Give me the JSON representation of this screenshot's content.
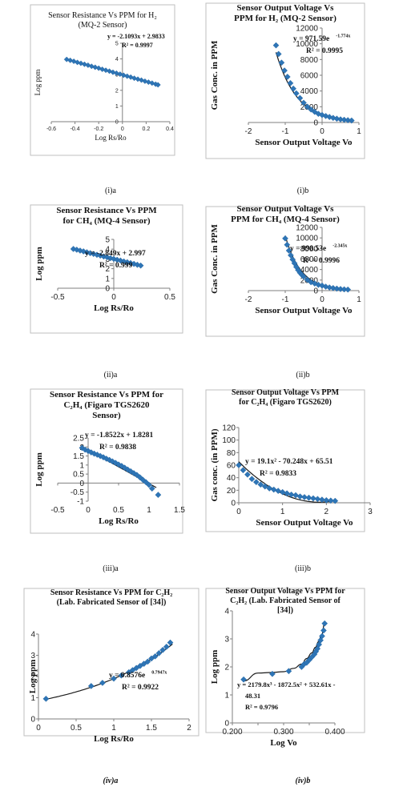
{
  "captions": [
    "(i)a",
    "(i)b",
    "(ii)a",
    "(ii)b",
    "(iii)a",
    "(iii)b",
    "(iv)a",
    "(iv)b"
  ],
  "chart_data": [
    {
      "id": "ia",
      "type": "scatter",
      "title": [
        "Sensor Resistance Vs PPM for H₂",
        "(MQ-2 Sensor)"
      ],
      "xlabel": "Log Rs/Ro",
      "ylabel": "Log ppm",
      "xlim": [
        -0.6,
        0.4
      ],
      "ylim": [
        0,
        5
      ],
      "xticks": [
        -0.6,
        -0.4,
        -0.2,
        0,
        0.2,
        0.4
      ],
      "yticks": [
        0,
        1,
        2,
        3,
        4,
        5
      ],
      "grid": false,
      "marker_color": "#2e75b6",
      "x": [
        -0.47,
        -0.44,
        -0.41,
        -0.38,
        -0.35,
        -0.32,
        -0.29,
        -0.26,
        -0.23,
        -0.2,
        -0.17,
        -0.14,
        -0.11,
        -0.08,
        -0.05,
        -0.02,
        0.01,
        0.04,
        0.07,
        0.1,
        0.13,
        0.16,
        0.19,
        0.22,
        0.25,
        0.28,
        0.3
      ],
      "y": [
        3.97,
        3.91,
        3.85,
        3.78,
        3.72,
        3.66,
        3.6,
        3.53,
        3.47,
        3.41,
        3.34,
        3.28,
        3.22,
        3.15,
        3.09,
        3.03,
        2.96,
        2.9,
        2.84,
        2.77,
        2.71,
        2.65,
        2.58,
        2.52,
        2.46,
        2.39,
        2.35
      ],
      "trendline": {
        "kind": "linear",
        "a": -2.1093,
        "b": 2.9833
      },
      "annotations": [
        "y = -2.1093x + 2.9833",
        "R² = 0.9997"
      ]
    },
    {
      "id": "ib",
      "type": "scatter",
      "title": [
        "Sensor Output Voltage Vs",
        "PPM  for H₂ (MQ-2 Sensor)"
      ],
      "xlabel": "Sensor Output Voltage Vo",
      "ylabel": "Gas Conc. in PPM",
      "xlim": [
        -2,
        1
      ],
      "ylim": [
        0,
        12000
      ],
      "xticks": [
        -2,
        -1,
        0,
        1
      ],
      "yticks": [
        0,
        2000,
        4000,
        6000,
        8000,
        10000,
        12000
      ],
      "grid": false,
      "marker_color": "#2e75b6",
      "x": [
        -1.25,
        -1.18,
        -1.1,
        -1.02,
        -0.94,
        -0.86,
        -0.78,
        -0.7,
        -0.6,
        -0.5,
        -0.4,
        -0.3,
        -0.2,
        -0.1,
        0.0,
        0.1,
        0.2,
        0.3,
        0.4,
        0.5,
        0.6,
        0.7,
        0.8
      ],
      "y": [
        9800,
        8700,
        7600,
        6600,
        5800,
        5000,
        4300,
        3700,
        3100,
        2500,
        2000,
        1650,
        1350,
        1100,
        950,
        820,
        700,
        580,
        480,
        400,
        340,
        290,
        250
      ],
      "trendline": {
        "kind": "exp",
        "a": 971.59,
        "b": -1.774
      },
      "annotations": [
        "y = 971.59e",
        "-1.774x",
        "R² = 0.9995"
      ]
    },
    {
      "id": "iia",
      "type": "scatter",
      "title": [
        "Sensor Resistance Vs PPM",
        "for CH₄ (MQ-4 Sensor)"
      ],
      "xlabel": "Log Rs/Ro",
      "ylabel": "Log ppm",
      "xlim": [
        -0.5,
        0.5
      ],
      "ylim": [
        0,
        5
      ],
      "xticks": [
        -0.5,
        0,
        0.5
      ],
      "yticks": [
        0,
        1,
        2,
        3,
        4,
        5
      ],
      "grid": false,
      "marker_color": "#2e75b6",
      "x": [
        -0.36,
        -0.33,
        -0.3,
        -0.27,
        -0.24,
        -0.21,
        -0.18,
        -0.15,
        -0.12,
        -0.09,
        -0.06,
        -0.03,
        0.0,
        0.03,
        0.06,
        0.09,
        0.12,
        0.15,
        0.18,
        0.21,
        0.24
      ],
      "y": [
        4.02,
        3.94,
        3.85,
        3.77,
        3.68,
        3.59,
        3.51,
        3.42,
        3.34,
        3.25,
        3.17,
        3.08,
        3.0,
        2.91,
        2.83,
        2.74,
        2.66,
        2.57,
        2.49,
        2.4,
        2.32
      ],
      "trendline": {
        "kind": "linear",
        "a": -2.849,
        "b": 2.997
      },
      "annotations": [
        "y = -2.849x + 2.997",
        "R² = 0.999"
      ]
    },
    {
      "id": "iib",
      "type": "scatter",
      "title": [
        "Sensor Output Voltage Vs",
        "PPM  for CH₄ (MQ-4 Sensor)"
      ],
      "xlabel": "Sensor Output Voltage Vo",
      "ylabel": "Gas Conc. in PPM",
      "xlim": [
        -2,
        1
      ],
      "ylim": [
        0,
        12000
      ],
      "xticks": [
        -2,
        -1,
        0,
        1
      ],
      "yticks": [
        0,
        2000,
        4000,
        6000,
        8000,
        10000,
        12000
      ],
      "grid": false,
      "marker_color": "#2e75b6",
      "x": [
        -1.0,
        -0.95,
        -0.9,
        -0.85,
        -0.8,
        -0.75,
        -0.7,
        -0.65,
        -0.6,
        -0.55,
        -0.5,
        -0.4,
        -0.3,
        -0.2,
        -0.1,
        0.0,
        0.1,
        0.2,
        0.3,
        0.4,
        0.5,
        0.6,
        0.7
      ],
      "y": [
        9900,
        8700,
        7600,
        6700,
        5900,
        5200,
        4500,
        3900,
        3400,
        3000,
        2650,
        2050,
        1600,
        1350,
        1100,
        950,
        750,
        600,
        480,
        380,
        300,
        240,
        200
      ],
      "trendline": {
        "kind": "exp",
        "a": 998.53,
        "b": -2.345
      },
      "annotations": [
        "y = 998.53e",
        "-2.345x",
        "R² = 0.9996"
      ]
    },
    {
      "id": "iiia",
      "type": "scatter",
      "title": [
        "Sensor Resistance Vs PPM for",
        "C₂H₄ (Figaro TGS2620",
        "Sensor)"
      ],
      "xlabel": "Log Rs/Ro",
      "ylabel": "Log ppm",
      "xlim": [
        -0.5,
        1.5
      ],
      "ylim": [
        -1,
        2.5
      ],
      "xticks": [
        -0.5,
        0,
        0.5,
        1,
        1.5
      ],
      "yticks": [
        -1,
        -0.5,
        0,
        0.5,
        1,
        1.5,
        2,
        2.5
      ],
      "grid": false,
      "marker_color": "#2e75b6",
      "x": [
        -0.1,
        -0.05,
        0.0,
        0.05,
        0.1,
        0.15,
        0.2,
        0.25,
        0.3,
        0.35,
        0.4,
        0.45,
        0.5,
        0.55,
        0.6,
        0.65,
        0.7,
        0.75,
        0.8,
        0.85,
        0.9,
        0.95,
        1.0,
        1.05,
        1.15
      ],
      "y": [
        1.95,
        1.85,
        1.78,
        1.7,
        1.63,
        1.57,
        1.5,
        1.43,
        1.35,
        1.28,
        1.2,
        1.12,
        1.03,
        0.95,
        0.85,
        0.75,
        0.65,
        0.55,
        0.45,
        0.32,
        0.18,
        0.05,
        -0.1,
        -0.3,
        -0.65
      ],
      "trendline": {
        "kind": "poly",
        "coeffs": [
          1.8281,
          -1.8522
        ],
        "range": [
          -0.12,
          1.12
        ]
      },
      "annotations": [
        "y = -1.8522x + 1.8281",
        "R² = 0.9838"
      ]
    },
    {
      "id": "iiib",
      "type": "scatter",
      "title": [
        "Sensor Output Voltage Vs PPM",
        "for C₂H₄ (Figaro TGS2620)"
      ],
      "xlabel": "Sensor Output Voltage Vo",
      "ylabel": "Gas conc. (in PPM)",
      "xlim": [
        0,
        3
      ],
      "ylim": [
        0,
        120
      ],
      "xticks": [
        0,
        1,
        2,
        3
      ],
      "yticks": [
        0,
        20,
        40,
        60,
        80,
        100,
        120
      ],
      "grid": false,
      "marker_color": "#2e75b6",
      "x": [
        0.0,
        0.1,
        0.2,
        0.3,
        0.4,
        0.5,
        0.6,
        0.7,
        0.8,
        0.9,
        1.0,
        1.1,
        1.2,
        1.3,
        1.4,
        1.5,
        1.6,
        1.7,
        1.8,
        1.9,
        2.0,
        2.1,
        2.2
      ],
      "y": [
        60,
        52,
        45,
        38,
        33,
        29,
        26,
        23,
        21,
        19,
        17,
        15,
        13,
        12,
        10,
        9,
        8,
        7,
        6,
        5,
        4,
        3.5,
        3
      ],
      "trendline": {
        "kind": "poly",
        "coeffs": [
          65.51,
          -70.248,
          19.1
        ],
        "range": [
          0,
          2.2
        ]
      },
      "annotations": [
        "y = 19.1x² - 70.248x + 65.51",
        "R² = 0.9833"
      ]
    },
    {
      "id": "iva",
      "type": "scatter",
      "title": [
        "Sensor Resistance Vs PPM for C₂H₂",
        "(Lab. Fabricated Sensor of [34])"
      ],
      "xlabel": "Log Rs/Ro",
      "ylabel": "Log ppm",
      "xlim": [
        0,
        2
      ],
      "ylim": [
        0,
        4
      ],
      "xticks": [
        0,
        0.5,
        1,
        1.5,
        2
      ],
      "yticks": [
        0,
        1,
        2,
        3,
        4
      ],
      "grid": false,
      "marker_color": "#2e75b6",
      "x": [
        0.1,
        0.7,
        0.85,
        1.0,
        1.1,
        1.2,
        1.25,
        1.3,
        1.35,
        1.4,
        1.45,
        1.5,
        1.55,
        1.6,
        1.65,
        1.7,
        1.75
      ],
      "y": [
        0.95,
        1.55,
        1.7,
        1.9,
        2.05,
        2.2,
        2.3,
        2.4,
        2.5,
        2.6,
        2.7,
        2.85,
        2.95,
        3.1,
        3.25,
        3.4,
        3.6
      ],
      "trendline": {
        "kind": "exp",
        "a": 0.8576,
        "b": 0.7947,
        "range": [
          0.1,
          1.78
        ]
      },
      "annotations": [
        "y = 0.8576e",
        "0.7947x",
        "R² = 0.9922"
      ]
    },
    {
      "id": "ivb",
      "type": "scatter",
      "title": [
        "Sensor Output Voltage Vs PPM for",
        "C₂H₂ (Lab. Fabricated Sensor of",
        "[34])"
      ],
      "xlabel": "Log Vo",
      "ylabel": "Log ppm",
      "xlim": [
        0.2,
        0.4
      ],
      "ylim": [
        0,
        4
      ],
      "xticks": [
        0.2,
        0.25,
        0.3,
        0.35,
        0.4
      ],
      "xticklabels": [
        "0.200",
        "",
        "0.300",
        "",
        "0.400"
      ],
      "yticks": [
        0,
        1,
        2,
        3,
        4
      ],
      "grid": false,
      "marker_color": "#2e75b6",
      "x": [
        0.222,
        0.278,
        0.31,
        0.335,
        0.34,
        0.345,
        0.35,
        0.355,
        0.36,
        0.363,
        0.366,
        0.369,
        0.372,
        0.375,
        0.378,
        0.38
      ],
      "y": [
        1.55,
        1.75,
        1.85,
        2.0,
        2.1,
        2.15,
        2.25,
        2.35,
        2.45,
        2.55,
        2.65,
        2.8,
        2.95,
        3.1,
        3.3,
        3.55
      ],
      "trendline": {
        "kind": "fitted",
        "x": [
          0.222,
          0.25,
          0.275,
          0.3,
          0.32,
          0.335,
          0.345,
          0.355,
          0.362,
          0.368,
          0.374,
          0.38
        ],
        "y": [
          1.5,
          1.78,
          1.8,
          1.83,
          1.95,
          2.1,
          2.3,
          2.5,
          2.7,
          2.9,
          3.15,
          3.55
        ]
      },
      "annotations": [
        "y = 2179.8x³ - 1872.5x² + 532.61x -",
        "48.31",
        "R² = 0.9796"
      ]
    }
  ]
}
